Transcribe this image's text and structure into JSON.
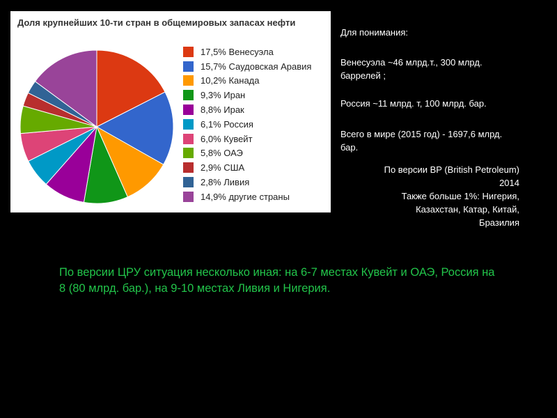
{
  "chart_data": {
    "type": "pie",
    "title": "Доля крупнейших 10-ти стран в общемировых запасах нефти",
    "legend_position": "right",
    "slices": [
      {
        "label": "17,5% Венесуэла",
        "value": 17.5,
        "color": "#dc3912"
      },
      {
        "label": "15,7% Саудовская Аравия",
        "value": 15.7,
        "color": "#3366cc"
      },
      {
        "label": "10,2% Канада",
        "value": 10.2,
        "color": "#ff9900"
      },
      {
        "label": "9,3% Иран",
        "value": 9.3,
        "color": "#109618"
      },
      {
        "label": "8,8% Ирак",
        "value": 8.8,
        "color": "#990099"
      },
      {
        "label": "6,1% Россия",
        "value": 6.1,
        "color": "#0099c6"
      },
      {
        "label": "6,0% Кувейт",
        "value": 6.0,
        "color": "#dd4477"
      },
      {
        "label": "5,8% ОАЭ",
        "value": 5.8,
        "color": "#66aa00"
      },
      {
        "label": "2,9% США",
        "value": 2.9,
        "color": "#b82e2e"
      },
      {
        "label": "2,8% Ливия",
        "value": 2.8,
        "color": "#316395"
      },
      {
        "label": "14,9% другие страны",
        "value": 14.9,
        "color": "#994499"
      }
    ]
  },
  "notes": {
    "heading": "Для понимания:",
    "venezuela": "Венесуэла ~46 млрд.т., 300 млрд. баррелей ;",
    "russia": "Россия ~11 млрд. т, 100 млрд. бар.",
    "world": "Всего в мире (2015 год) - 1697,6 млрд. бар.",
    "source_lines": [
      "По версии BP (British Petroleum)",
      "2014",
      "Также больше 1%: Нигерия,",
      "Казахстан, Катар, Китай,",
      "Бразилия"
    ],
    "cia": "По версии ЦРУ ситуация несколько иная: на 6-7 местах Кувейт и ОАЭ, Россия на 8 (80 млрд. бар.), на 9-10 местах Ливия и Нигерия."
  }
}
